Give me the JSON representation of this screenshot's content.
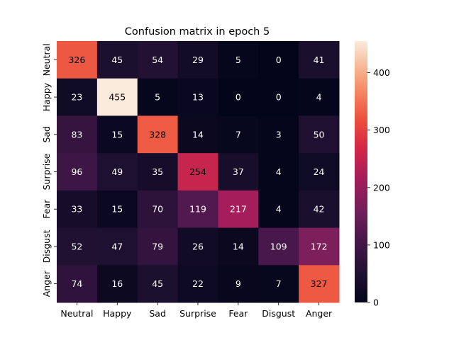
{
  "chart_data": {
    "type": "heatmap",
    "title": "Confusion matrix in epoch 5",
    "xlabel": "",
    "ylabel": "",
    "x_categories": [
      "Neutral",
      "Happy",
      "Sad",
      "Surprise",
      "Fear",
      "Disgust",
      "Anger"
    ],
    "y_categories": [
      "Neutral",
      "Happy",
      "Sad",
      "Surprise",
      "Fear",
      "Disgust",
      "Anger"
    ],
    "values": [
      [
        326,
        45,
        54,
        29,
        5,
        0,
        41
      ],
      [
        23,
        455,
        5,
        13,
        0,
        0,
        4
      ],
      [
        83,
        15,
        328,
        14,
        7,
        3,
        50
      ],
      [
        96,
        49,
        35,
        254,
        37,
        4,
        24
      ],
      [
        33,
        15,
        70,
        119,
        217,
        4,
        42
      ],
      [
        52,
        47,
        79,
        26,
        14,
        109,
        172
      ],
      [
        74,
        16,
        45,
        22,
        9,
        7,
        327
      ]
    ],
    "colorbar": {
      "min": 0,
      "max": 455,
      "ticks": [
        0,
        100,
        200,
        300,
        400
      ],
      "colormap": "rocket"
    }
  }
}
